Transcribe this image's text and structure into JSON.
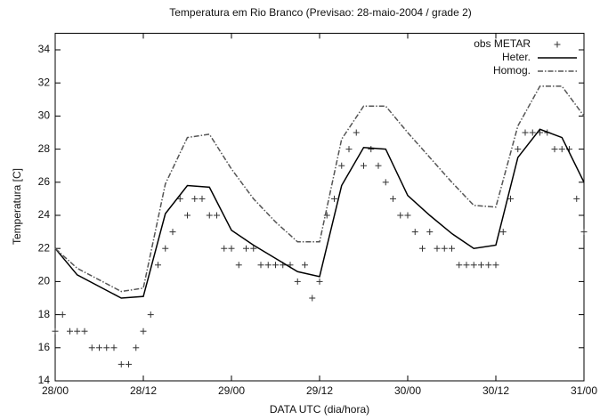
{
  "chart_data": {
    "type": "line",
    "title": "Temperatura em Rio Branco (Previsao: 28-maio-2004 / grade 2)",
    "x_label": "DATA UTC (dia/hora)",
    "y_label": "Temperatura [C]",
    "xlim": [
      0,
      72
    ],
    "xticks": [
      {
        "value": 0,
        "label": "28/00"
      },
      {
        "value": 12,
        "label": "28/12"
      },
      {
        "value": 24,
        "label": "29/00"
      },
      {
        "value": 36,
        "label": "29/12"
      },
      {
        "value": 48,
        "label": "30/00"
      },
      {
        "value": 60,
        "label": "30/12"
      },
      {
        "value": 72,
        "label": "31/00"
      }
    ],
    "ylim": [
      14,
      35
    ],
    "yticks": [
      14,
      16,
      18,
      20,
      22,
      24,
      26,
      28,
      30,
      32,
      34
    ],
    "legend": "top-right",
    "series": [
      {
        "name": "obs METAR",
        "color": "#333333",
        "style": "points",
        "x": [
          0,
          1,
          2,
          3,
          4,
          5,
          6,
          7,
          8,
          9,
          10,
          11,
          12,
          13,
          14,
          15,
          16,
          17,
          18,
          19,
          20,
          21,
          22,
          23,
          24,
          25,
          26,
          27,
          28,
          29,
          30,
          31,
          32,
          33,
          34,
          35,
          36,
          37,
          38,
          39,
          40,
          41,
          42,
          43,
          44,
          45,
          46,
          47,
          48,
          49,
          50,
          51,
          52,
          53,
          54,
          55,
          56,
          57,
          58,
          59,
          60,
          61,
          62,
          63,
          64,
          65,
          66,
          67,
          68,
          69,
          70,
          71,
          72
        ],
        "values": [
          17,
          18,
          17,
          17,
          17,
          16,
          16,
          16,
          16,
          15,
          15,
          16,
          17,
          18,
          21,
          22,
          23,
          25,
          24,
          25,
          25,
          24,
          24,
          22,
          22,
          21,
          22,
          22,
          21,
          21,
          21,
          21,
          21,
          20,
          21,
          19,
          20,
          24,
          25,
          27,
          28,
          29,
          27,
          28,
          27,
          26,
          25,
          24,
          24,
          23,
          22,
          23,
          22,
          22,
          22,
          21,
          21,
          21,
          21,
          21,
          21,
          23,
          25,
          28,
          29,
          29,
          29,
          29,
          28,
          28,
          28,
          25,
          23
        ]
      },
      {
        "name": "Heter.",
        "color": "#000000",
        "style": "solid",
        "x": [
          0,
          3,
          9,
          12,
          15,
          18,
          21,
          24,
          27,
          30,
          33,
          36,
          39,
          42,
          45,
          48,
          51,
          54,
          57,
          60,
          63,
          66,
          69,
          72
        ],
        "values": [
          22,
          20.4,
          19,
          19.1,
          24.1,
          25.8,
          25.7,
          23.1,
          22.2,
          21.4,
          20.6,
          20.3,
          25.8,
          28.1,
          28,
          25.2,
          24,
          22.9,
          22,
          22.2,
          27.5,
          29.2,
          28.7,
          26
        ]
      },
      {
        "name": "Homog.",
        "color": "#555555",
        "style": "dashdot",
        "x": [
          0,
          3,
          9,
          12,
          15,
          18,
          21,
          24,
          27,
          30,
          33,
          36,
          39,
          42,
          45,
          48,
          51,
          54,
          57,
          60,
          63,
          66,
          69,
          72
        ],
        "values": [
          22,
          20.8,
          19.4,
          19.6,
          25.9,
          28.7,
          28.9,
          26.8,
          25,
          23.6,
          22.4,
          22.4,
          28.6,
          30.6,
          30.6,
          29,
          27.5,
          26,
          24.6,
          24.5,
          29.4,
          31.8,
          31.8,
          30
        ]
      }
    ]
  }
}
